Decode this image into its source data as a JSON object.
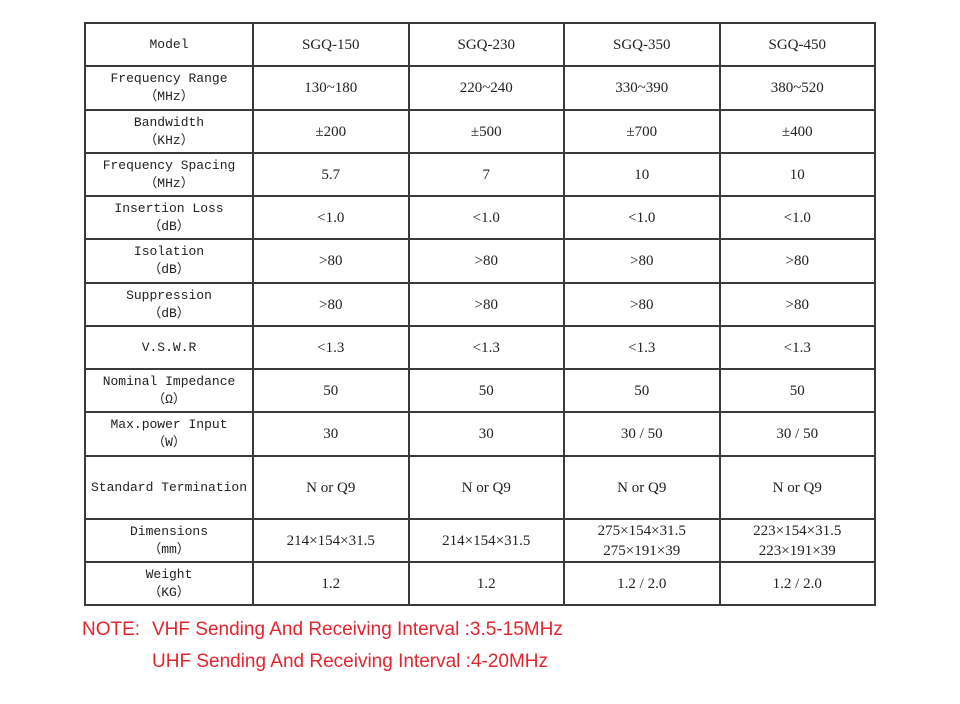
{
  "table": {
    "header": [
      "Model",
      "SGQ-150",
      "SGQ-230",
      "SGQ-350",
      "SGQ-450"
    ],
    "rows": [
      [
        [
          "Frequency Range",
          "（MHz）"
        ],
        [
          "130~180"
        ],
        [
          "220~240"
        ],
        [
          "330~390"
        ],
        [
          "380~520"
        ]
      ],
      [
        [
          "Bandwidth",
          "（KHz）"
        ],
        [
          "±200"
        ],
        [
          "±500"
        ],
        [
          "±700"
        ],
        [
          "±400"
        ]
      ],
      [
        [
          "Frequency Spacing",
          "（MHz）"
        ],
        [
          "5.7"
        ],
        [
          "7"
        ],
        [
          "10"
        ],
        [
          "10"
        ]
      ],
      [
        [
          "Insertion Loss",
          "（dB）"
        ],
        [
          "<1.0"
        ],
        [
          "<1.0"
        ],
        [
          "<1.0"
        ],
        [
          "<1.0"
        ]
      ],
      [
        [
          "Isolation",
          "（dB）"
        ],
        [
          ">80"
        ],
        [
          ">80"
        ],
        [
          ">80"
        ],
        [
          ">80"
        ]
      ],
      [
        [
          "Suppression",
          "（dB）"
        ],
        [
          ">80"
        ],
        [
          ">80"
        ],
        [
          ">80"
        ],
        [
          ">80"
        ]
      ],
      [
        [
          "V.S.W.R"
        ],
        [
          "<1.3"
        ],
        [
          "<1.3"
        ],
        [
          "<1.3"
        ],
        [
          "<1.3"
        ]
      ],
      [
        [
          "Nominal Impedance",
          "（Ω）"
        ],
        [
          "50"
        ],
        [
          "50"
        ],
        [
          "50"
        ],
        [
          "50"
        ]
      ],
      [
        [
          "Max.power Input",
          "（W）"
        ],
        [
          "30"
        ],
        [
          "30"
        ],
        [
          "30 / 50"
        ],
        [
          "30 / 50"
        ]
      ],
      [
        [
          "Standard Termination"
        ],
        [
          "N or Q9"
        ],
        [
          "N or Q9"
        ],
        [
          "N or Q9"
        ],
        [
          "N or Q9"
        ]
      ],
      [
        [
          "Dimensions",
          "（mm）"
        ],
        [
          "214×154×31.5"
        ],
        [
          "214×154×31.5"
        ],
        [
          "275×154×31.5",
          "275×191×39"
        ],
        [
          "223×154×31.5",
          "223×191×39"
        ]
      ],
      [
        [
          "Weight",
          "（KG）"
        ],
        [
          "1.2"
        ],
        [
          "1.2"
        ],
        [
          "1.2 / 2.0"
        ],
        [
          "1.2 / 2.0"
        ]
      ]
    ]
  },
  "note": {
    "label": "NOTE:",
    "lines": [
      "VHF Sending And Receiving Interval :3.5-15MHz",
      "UHF Sending And Receiving Interval :4-20MHz"
    ]
  }
}
